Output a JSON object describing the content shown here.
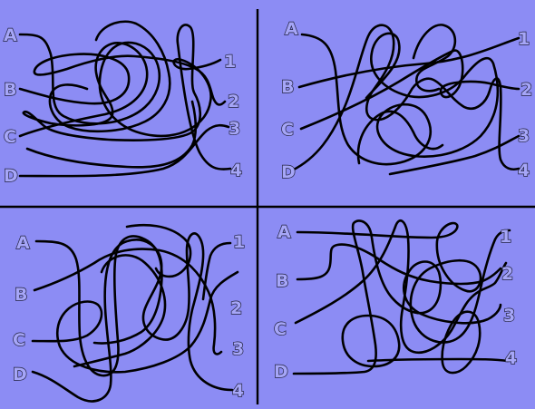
{
  "puzzle": {
    "panels": [
      {
        "id": "top-left",
        "left_labels": [
          "A",
          "B",
          "C",
          "D"
        ],
        "right_labels": [
          "1",
          "2",
          "3",
          "4"
        ]
      },
      {
        "id": "top-right",
        "left_labels": [
          "A",
          "B",
          "C",
          "D"
        ],
        "right_labels": [
          "1",
          "2",
          "3",
          "4"
        ]
      },
      {
        "id": "bottom-left",
        "left_labels": [
          "A",
          "B",
          "C",
          "D"
        ],
        "right_labels": [
          "1",
          "2",
          "3",
          "4"
        ]
      },
      {
        "id": "bottom-right",
        "left_labels": [
          "A",
          "B",
          "C",
          "D"
        ],
        "right_labels": [
          "1",
          "2",
          "3",
          "4"
        ]
      }
    ],
    "colors": {
      "background": "#8C8CF4",
      "line": "#000000",
      "label_fill": "#A6A6F8",
      "label_outline": "#23233F"
    }
  }
}
